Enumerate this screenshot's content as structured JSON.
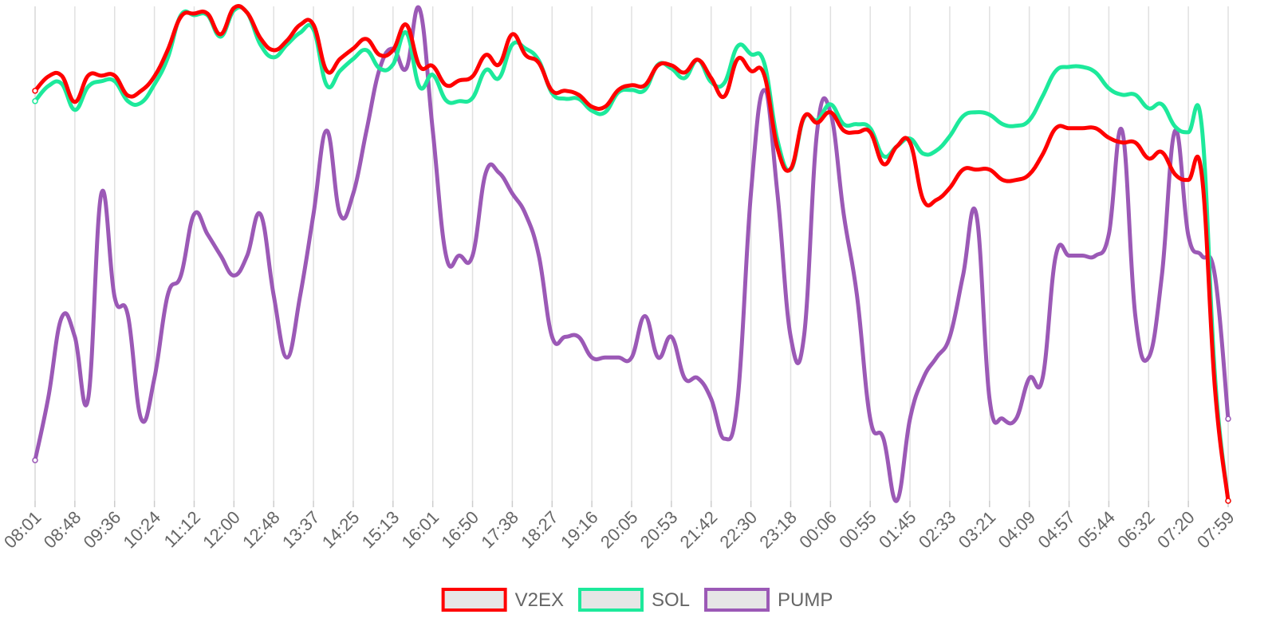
{
  "chart_data": {
    "type": "line",
    "smooth": true,
    "grid": true,
    "legend": "bottom",
    "categories": [
      "08:01",
      null,
      null,
      "08:48",
      null,
      null,
      "09:36",
      null,
      null,
      "10:24",
      null,
      null,
      "11:12",
      null,
      null,
      "12:00",
      null,
      null,
      "12:48",
      null,
      null,
      "13:37",
      null,
      null,
      "14:25",
      null,
      null,
      "15:13",
      null,
      null,
      "16:01",
      null,
      null,
      "16:50",
      null,
      null,
      "17:38",
      null,
      null,
      "18:27",
      null,
      null,
      "19:16",
      null,
      null,
      "20:05",
      null,
      null,
      "20:53",
      null,
      null,
      "21:42",
      null,
      null,
      "22:30",
      null,
      null,
      "23:18",
      null,
      null,
      "00:06",
      null,
      null,
      "00:55",
      null,
      null,
      "01:45",
      null,
      null,
      "02:33",
      null,
      null,
      "03:21",
      null,
      null,
      "04:09",
      null,
      null,
      "04:57",
      null,
      null,
      "05:44",
      null,
      null,
      "06:32",
      null,
      null,
      "07:20",
      null,
      null,
      "07:59"
    ],
    "series": [
      {
        "name": "V2EX",
        "color": "#ff0000",
        "values": [
          515,
          533,
          534,
          501,
          534,
          534,
          534,
          509,
          515,
          533,
          566,
          608,
          612,
          612,
          586,
          619,
          613,
          581,
          566,
          578,
          598,
          598,
          540,
          555,
          568,
          580,
          560,
          566,
          598,
          546,
          546,
          522,
          528,
          533,
          560,
          548,
          586,
          560,
          550,
          515,
          515,
          510,
          495,
          495,
          516,
          522,
          522,
          547,
          547,
          538,
          554,
          531,
          508,
          555,
          540,
          535,
          443,
          417,
          482,
          475,
          488,
          465,
          463,
          463,
          423,
          445,
          450,
          378,
          378,
          393,
          416,
          416,
          416,
          403,
          403,
          410,
          435,
          468,
          468,
          468,
          468,
          456,
          450,
          450,
          430,
          438,
          410,
          403,
          411,
          142,
          0
        ]
      },
      {
        "name": "SOL",
        "color": "#1de99b",
        "values": [
          502,
          521,
          524,
          491,
          520,
          527,
          527,
          502,
          500,
          523,
          556,
          610,
          610,
          610,
          583,
          616,
          613,
          573,
          557,
          573,
          588,
          592,
          522,
          540,
          555,
          566,
          543,
          548,
          588,
          520,
          535,
          503,
          502,
          506,
          541,
          531,
          573,
          568,
          553,
          512,
          505,
          505,
          490,
          488,
          513,
          516,
          516,
          548,
          543,
          531,
          554,
          526,
          525,
          571,
          561,
          550,
          453,
          416,
          481,
          478,
          498,
          473,
          473,
          468,
          433,
          445,
          455,
          436,
          440,
          458,
          483,
          488,
          485,
          473,
          471,
          478,
          508,
          540,
          545,
          545,
          538,
          518,
          510,
          510,
          493,
          498,
          470,
          463,
          472,
          158,
          0
        ]
      },
      {
        "name": "PUMP",
        "color": "#9b59b6",
        "values": [
          51,
          130,
          230,
          206,
          128,
          386,
          256,
          233,
          103,
          154,
          258,
          283,
          360,
          335,
          308,
          283,
          308,
          360,
          258,
          180,
          258,
          360,
          465,
          360,
          386,
          465,
          543,
          568,
          543,
          618,
          465,
          308,
          308,
          308,
          412,
          412,
          386,
          360,
          308,
          206,
          206,
          206,
          180,
          180,
          180,
          180,
          232,
          180,
          206,
          154,
          154,
          128,
          78,
          128,
          386,
          516,
          386,
          206,
          206,
          465,
          488,
          360,
          258,
          103,
          78,
          0,
          103,
          154,
          180,
          206,
          283,
          360,
          128,
          103,
          103,
          154,
          154,
          308,
          308,
          308,
          308,
          335,
          465,
          232,
          180,
          283,
          465,
          333,
          308,
          283,
          103
        ]
      }
    ]
  }
}
